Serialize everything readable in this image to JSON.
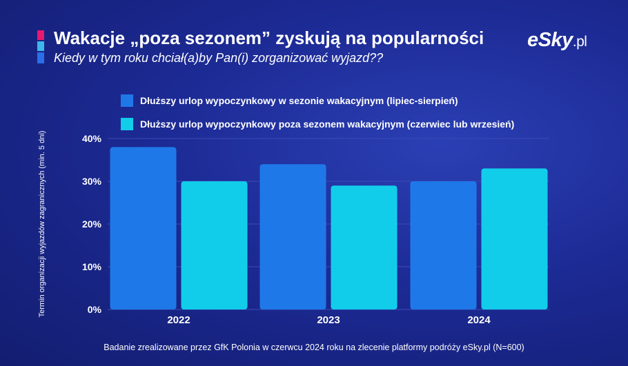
{
  "header": {
    "title": "Wakacje „poza sezonem” zyskują na popularności",
    "subtitle": "Kiedy w tym roku chciał(a)by Pan(i) zorganizować wyjazd??",
    "logo_text": "eSky",
    "logo_suffix": ".pl"
  },
  "colors": {
    "series1": "#1f78e8",
    "series2": "#12cdea",
    "grid": "#3a4bb8"
  },
  "chart_data": {
    "type": "bar",
    "title": "Wakacje „poza sezonem” zyskują na popularności",
    "subtitle": "Kiedy w tym roku chciał(a)by Pan(i) zorganizować wyjazd??",
    "xlabel": "",
    "ylabel": "Termin organizacji wyjazdów zagranicznych (min. 5 dni)",
    "categories": [
      "2022",
      "2023",
      "2024"
    ],
    "yticks": [
      0,
      10,
      20,
      30,
      40
    ],
    "ytick_labels": [
      "0%",
      "10%",
      "20%",
      "30%",
      "40%"
    ],
    "ylim": [
      0,
      40
    ],
    "grid": true,
    "legend_position": "top",
    "series": [
      {
        "name": "Dłuższy urlop wypoczynkowy w sezonie wakacyjnym (lipiec-sierpień)",
        "values": [
          38,
          34,
          30
        ]
      },
      {
        "name": "Dłuższy urlop wypoczynkowy poza sezonem wakacyjnym (czerwiec lub wrzesień)",
        "values": [
          30,
          29,
          33
        ]
      }
    ]
  },
  "footnote": "Badanie zrealizowane przez GfK Polonia w czerwcu 2024 roku na zlecenie platformy podróży eSky.pl (N=600)"
}
